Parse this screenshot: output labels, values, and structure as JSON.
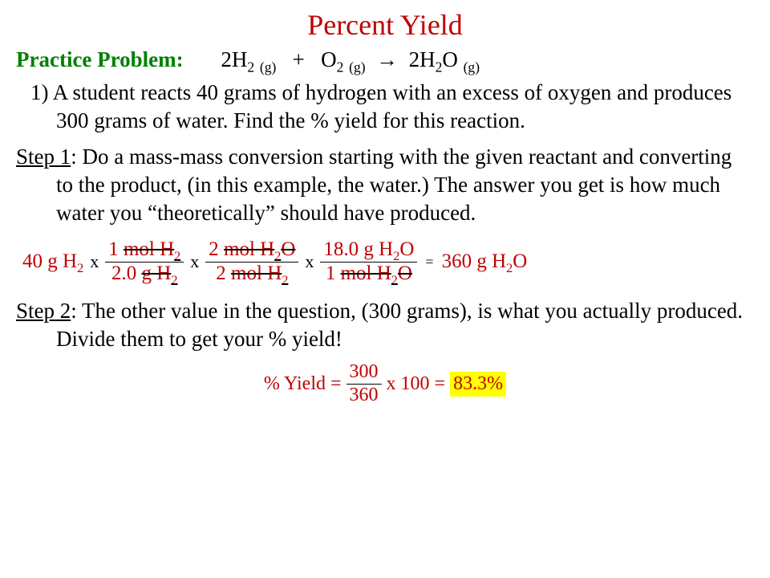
{
  "title": "Percent Yield",
  "practice_label": "Practice Problem",
  "equation": {
    "r1_coef": "2H",
    "r1_sub": "2",
    "r1_state": "(g)",
    "plus": "+",
    "r2": "O",
    "r2_sub": "2",
    "r2_state": "(g)",
    "arrow": "→",
    "p_coef": "2H",
    "p_sub": "2",
    "p_rest": "O",
    "p_state": "(g)"
  },
  "q1_num": "1)",
  "q1_text_a": "A student reacts 40 grams of hydrogen with an excess of oxygen and produces 300 grams of water.  Find the % yield for this reaction.",
  "step1_label": "Step 1",
  "step1_text": ":  Do a mass-mass conversion starting with the given reactant and converting to the product, (in this example, the water.)  The answer you get is how much water you “theoretically” should have produced.",
  "calc": {
    "start_val": "40 g H",
    "start_sub": "2",
    "f1n_a": "1 ",
    "f1n_strike": "mol H",
    "f1n_sub": "2",
    "f1d_a": "2.0 ",
    "f1d_strike": "g H",
    "f1d_sub": "2",
    "f2n_a": "2 ",
    "f2n_strike": "mol H",
    "f2n_sub": "2",
    "f2n_b": "O",
    "f2d_a": "2 ",
    "f2d_strike": "mol H",
    "f2d_sub": "2",
    "f3n": "18.0 g H",
    "f3n_sub": "2",
    "f3n_b": "O",
    "f3d_a": "1 ",
    "f3d_strike": "mol H",
    "f3d_sub": "2",
    "f3d_b": "O",
    "result": "360 g H",
    "result_sub": "2",
    "result_b": "O"
  },
  "step2_label": "Step 2",
  "step2_text": ":  The other value in the question, (300 grams), is what you actually produced.  Divide them to get your % yield!",
  "final": {
    "lhs": "% Yield =",
    "num": "300",
    "den": "360",
    "mid": "x 100 =",
    "ans": "83.3%"
  },
  "colors": {
    "title": "#c00000",
    "pp": "#008000",
    "calc": "#c00000",
    "highlight": "#ffff00",
    "text": "#000000"
  }
}
